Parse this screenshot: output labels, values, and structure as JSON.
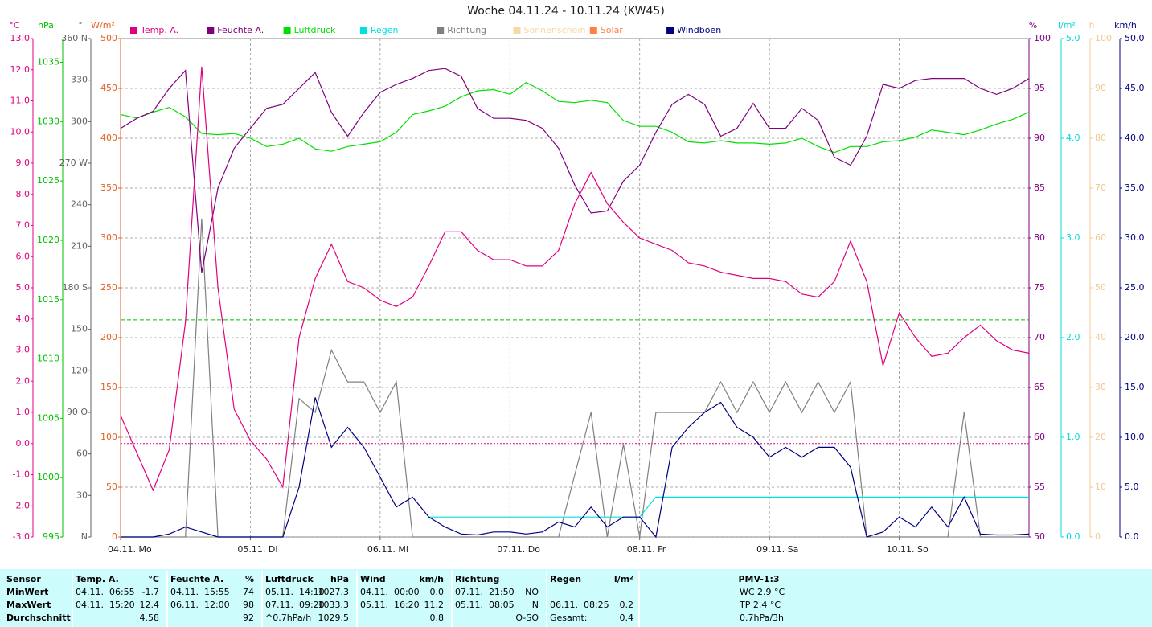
{
  "chart_data": {
    "type": "line",
    "title": "Woche 04.11.24 - 10.11.24 (KW45)",
    "x": [
      0,
      3,
      6,
      9,
      12,
      15,
      18,
      21,
      24,
      27,
      30,
      33,
      36,
      39,
      42,
      45,
      48,
      51,
      54,
      57,
      60,
      63,
      66,
      69,
      72,
      75,
      78,
      81,
      84,
      87,
      90,
      93,
      96,
      99,
      102,
      105,
      108,
      111,
      114,
      117,
      120,
      123,
      126,
      129,
      132,
      135,
      138,
      141,
      144,
      147,
      150,
      153,
      156,
      159,
      162,
      165,
      168
    ],
    "xlim": [
      0,
      168
    ],
    "xticks": [
      {
        "value": 0,
        "label": "04.11. Mo"
      },
      {
        "value": 24,
        "label": "05.11. Di"
      },
      {
        "value": 48,
        "label": "06.11. Mi"
      },
      {
        "value": 72,
        "label": "07.11. Do"
      },
      {
        "value": 96,
        "label": "08.11. Fr"
      },
      {
        "value": 120,
        "label": "09.11. Sa"
      },
      {
        "value": 144,
        "label": "10.11. So"
      }
    ],
    "grid": true,
    "axes": [
      {
        "label": "°C",
        "side": "left",
        "color": "#e0007f",
        "lim": [
          -3,
          13
        ],
        "ticks": [
          {
            "value": -3,
            "label": "-3.0"
          },
          {
            "value": -2,
            "label": "-2.0"
          },
          {
            "value": -1,
            "label": "-1.0"
          },
          {
            "value": 0,
            "label": "0.0"
          },
          {
            "value": 1,
            "label": "1.0"
          },
          {
            "value": 2,
            "label": "2.0"
          },
          {
            "value": 3,
            "label": "3.0"
          },
          {
            "value": 4,
            "label": "4.0"
          },
          {
            "value": 5,
            "label": "5.0"
          },
          {
            "value": 6,
            "label": "6.0"
          },
          {
            "value": 7,
            "label": "7.0"
          },
          {
            "value": 8,
            "label": "8.0"
          },
          {
            "value": 9,
            "label": "9.0"
          },
          {
            "value": 10,
            "label": "10.0"
          },
          {
            "value": 11,
            "label": "11.0"
          },
          {
            "value": 12,
            "label": "12.0"
          },
          {
            "value": 13,
            "label": "13.0"
          }
        ]
      },
      {
        "label": "hPa",
        "side": "left",
        "color": "#00c000",
        "lim": [
          995,
          1037
        ],
        "ticks": [
          995,
          1000,
          1005,
          1010,
          1015,
          1020,
          1025,
          1030,
          1035
        ]
      },
      {
        "label": "°",
        "side": "left",
        "color": "#606060",
        "lim": [
          0,
          360
        ],
        "ticks": [
          {
            "value": 0,
            "label": "N"
          },
          30,
          60,
          {
            "value": 90,
            "label": "90 O"
          },
          120,
          150,
          {
            "value": 180,
            "label": "180 S"
          },
          210,
          240,
          {
            "value": 270,
            "label": "270 W"
          },
          300,
          330,
          {
            "value": 360,
            "label": "360 N"
          }
        ]
      },
      {
        "label": "W/m²",
        "side": "left",
        "color": "#e06020",
        "lim": [
          0,
          500
        ],
        "ticks": [
          0,
          50,
          100,
          150,
          200,
          250,
          300,
          350,
          400,
          450,
          500
        ]
      },
      {
        "label": "%",
        "side": "right",
        "color": "#800080",
        "lim": [
          50,
          100
        ],
        "ticks": [
          50,
          55,
          60,
          65,
          70,
          75,
          80,
          85,
          90,
          95,
          100
        ]
      },
      {
        "label": "l/m²",
        "side": "right",
        "color": "#00d8d8",
        "lim": [
          0,
          5
        ],
        "ticks": [
          {
            "value": 0,
            "label": "0.0"
          },
          {
            "value": 1,
            "label": "1.0"
          },
          {
            "value": 2,
            "label": "2.0"
          },
          {
            "value": 3,
            "label": "3.0"
          },
          {
            "value": 4,
            "label": "4.0"
          },
          {
            "value": 5,
            "label": "5.0"
          }
        ]
      },
      {
        "label": "h",
        "side": "right",
        "color": "#f0c890",
        "lim": [
          0,
          100
        ],
        "ticks": [
          0,
          10,
          20,
          30,
          40,
          50,
          60,
          70,
          80,
          90,
          100
        ]
      },
      {
        "label": "km/h",
        "side": "right",
        "color": "#000080",
        "lim": [
          0,
          50
        ],
        "ticks": [
          {
            "value": 0,
            "label": "0.0"
          },
          {
            "value": 5,
            "label": "5.0"
          },
          {
            "value": 10,
            "label": "10.0"
          },
          {
            "value": 15,
            "label": "15.0"
          },
          {
            "value": 20,
            "label": "20.0"
          },
          {
            "value": 25,
            "label": "25.0"
          },
          {
            "value": 30,
            "label": "30.0"
          },
          {
            "value": 35,
            "label": "35.0"
          },
          {
            "value": 40,
            "label": "40.0"
          },
          {
            "value": 45,
            "label": "45.0"
          },
          {
            "value": 50,
            "label": "50.0"
          }
        ]
      }
    ],
    "reference_lines": [
      {
        "axis": 0,
        "value": 0,
        "color": "#e0007f"
      },
      {
        "axis": 1,
        "value": 1013.3,
        "color": "#00c000"
      }
    ],
    "series": [
      {
        "name": "Temp. A.",
        "color": "#e0007f",
        "axis": 0,
        "values": [
          0.9,
          -0.3,
          -1.5,
          -0.2,
          3.9,
          12.1,
          5.0,
          1.1,
          0.1,
          -0.5,
          -1.4,
          3.4,
          5.3,
          6.4,
          5.2,
          5.0,
          4.6,
          4.4,
          4.7,
          5.7,
          6.8,
          6.8,
          6.2,
          5.9,
          5.9,
          5.7,
          5.7,
          6.2,
          7.7,
          8.7,
          7.7,
          7.1,
          6.6,
          6.4,
          6.2,
          5.8,
          5.7,
          5.5,
          5.4,
          5.3,
          5.3,
          5.2,
          4.8,
          4.7,
          5.2,
          6.5,
          5.2,
          2.5,
          4.2,
          3.4,
          2.8,
          2.9,
          3.4,
          3.8,
          3.3,
          3.0,
          2.9
        ]
      },
      {
        "name": "Feuchte A.",
        "color": "#800080",
        "axis": 4,
        "values": [
          91,
          92,
          92.7,
          95,
          96.8,
          76.5,
          85,
          89,
          91,
          93,
          93.4,
          95,
          96.6,
          92.6,
          90.2,
          92.6,
          94.6,
          95.4,
          96,
          96.8,
          97,
          96.2,
          93,
          92,
          92,
          91.8,
          91,
          89,
          85.3,
          82.5,
          82.7,
          85.7,
          87.3,
          90.6,
          93.4,
          94.4,
          93.4,
          90.2,
          91,
          93.5,
          91,
          91,
          93,
          91.8,
          88.1,
          87.3,
          90.2,
          95.4,
          95,
          95.8,
          96,
          96,
          96,
          95,
          94.4,
          95,
          96
        ]
      },
      {
        "name": "Luftdruck",
        "color": "#00e000",
        "axis": 1,
        "values": [
          1030.6,
          1030.3,
          1030.8,
          1031.2,
          1030.4,
          1029,
          1028.9,
          1029,
          1028.6,
          1027.9,
          1028.1,
          1028.6,
          1027.7,
          1027.5,
          1027.9,
          1028.1,
          1028.3,
          1029.1,
          1030.6,
          1030.9,
          1031.3,
          1032.1,
          1032.6,
          1032.7,
          1032.3,
          1033.3,
          1032.6,
          1031.7,
          1031.6,
          1031.8,
          1031.6,
          1030.1,
          1029.6,
          1029.6,
          1029.1,
          1028.3,
          1028.2,
          1028.4,
          1028.2,
          1028.2,
          1028.1,
          1028.2,
          1028.6,
          1027.9,
          1027.4,
          1027.9,
          1027.9,
          1028.3,
          1028.4,
          1028.7,
          1029.3,
          1029.1,
          1028.9,
          1029.3,
          1029.8,
          1030.2,
          1030.8
        ]
      },
      {
        "name": "Regen",
        "color": "#00e0e0",
        "axis": 5,
        "values": [
          null,
          null,
          null,
          null,
          null,
          null,
          null,
          null,
          null,
          null,
          null,
          null,
          null,
          null,
          null,
          null,
          null,
          null,
          null,
          0.2,
          0.2,
          0.2,
          0.2,
          0.2,
          0.2,
          0.2,
          0.2,
          0.2,
          0.2,
          0.2,
          0.2,
          0.2,
          0.2,
          0.4,
          0.4,
          0.4,
          0.4,
          0.4,
          0.4,
          0.4,
          0.4,
          0.4,
          0.4,
          0.4,
          0.4,
          0.4,
          0.4,
          0.4,
          0.4,
          0.4,
          0.4,
          0.4,
          0.4,
          0.4,
          0.4,
          0.4,
          0.4
        ]
      },
      {
        "name": "Richtung",
        "color": "#808080",
        "axis": 2,
        "values": [
          0,
          0,
          0,
          0,
          0,
          230,
          0,
          0,
          0,
          0,
          0,
          100,
          90,
          135,
          112,
          112,
          90,
          112,
          0,
          0,
          0,
          0,
          0,
          0,
          0,
          0,
          0,
          0,
          45,
          90,
          0,
          67,
          0,
          90,
          90,
          90,
          90,
          112,
          90,
          112,
          90,
          112,
          90,
          112,
          90,
          112,
          0,
          0,
          0,
          0,
          0,
          0,
          90,
          0,
          0,
          0,
          0
        ]
      },
      {
        "name": "Sonnenschein",
        "color": "#f8d8a8",
        "axis": 6,
        "values": [
          null,
          null,
          null,
          null,
          null,
          null,
          null,
          null,
          null,
          null,
          null,
          null,
          null,
          null,
          null,
          null,
          null,
          null,
          null,
          null,
          null,
          null,
          null,
          null,
          null,
          null,
          null,
          null,
          null,
          null,
          null,
          null,
          null,
          null,
          null,
          null,
          null,
          null,
          null,
          null,
          null,
          null,
          null,
          null,
          null,
          null,
          null,
          null,
          null,
          null,
          null,
          null,
          null,
          null,
          null,
          null,
          null
        ]
      },
      {
        "name": "Solar",
        "color": "#ff8040",
        "axis": 3,
        "values": [
          null,
          null,
          null,
          null,
          null,
          null,
          null,
          null,
          null,
          null,
          null,
          null,
          null,
          null,
          null,
          null,
          null,
          null,
          null,
          null,
          null,
          null,
          null,
          null,
          null,
          null,
          null,
          null,
          null,
          null,
          null,
          null,
          null,
          null,
          null,
          null,
          null,
          null,
          null,
          null,
          null,
          null,
          null,
          null,
          null,
          null,
          null,
          null,
          null,
          null,
          null,
          null,
          null,
          null,
          null,
          null,
          null
        ]
      },
      {
        "name": "Windböen",
        "color": "#000080",
        "axis": 7,
        "values": [
          0,
          0,
          0,
          0.3,
          1,
          0.5,
          0,
          0,
          0,
          0,
          0,
          5,
          14,
          9,
          11,
          9,
          6,
          3,
          4,
          2,
          1,
          0.3,
          0.2,
          0.5,
          0.5,
          0.3,
          0.5,
          1.5,
          1,
          3,
          1,
          2,
          2,
          0,
          9,
          11,
          12.5,
          13.5,
          11,
          10,
          8,
          9,
          8,
          9,
          9,
          7,
          0,
          0.5,
          2,
          1,
          3,
          1,
          4,
          0.3,
          0.2,
          0.2,
          0.3
        ]
      }
    ]
  },
  "table": {
    "sensor": "Sensor",
    "row_labels": [
      "MinWert",
      "MaxWert",
      "Durchschnitt"
    ],
    "groups": [
      {
        "name": "Temp. A.",
        "unit": "°C",
        "rows": [
          [
            "04.11.  06:55",
            "-1.7"
          ],
          [
            "04.11.  15:20",
            "12.4"
          ],
          [
            null,
            "4.58"
          ]
        ]
      },
      {
        "name": "Feuchte A.",
        "unit": "%",
        "rows": [
          [
            "04.11.  15:55",
            "74"
          ],
          [
            "06.11.  12:00",
            "98"
          ],
          [
            null,
            "92"
          ]
        ]
      },
      {
        "name": "Luftdruck",
        "unit": "hPa",
        "rows": [
          [
            "05.11.  14:10",
            "1027.3"
          ],
          [
            "07.11.  09:20",
            "1033.3"
          ],
          [
            "^0.7hPa/h",
            "1029.5"
          ]
        ]
      },
      {
        "name": "Wind",
        "unit": "km/h",
        "rows": [
          [
            "04.11.  00:00",
            "0.0"
          ],
          [
            "05.11.  16:20",
            "11.2"
          ],
          [
            null,
            "0.8"
          ]
        ]
      },
      {
        "name": "Richtung",
        "rows": [
          [
            "07.11.  21:50",
            "NO"
          ],
          [
            "05.11.  08:05",
            "N"
          ],
          [
            null,
            "O-SO"
          ]
        ]
      },
      {
        "name": "Regen",
        "unit": "l/m²",
        "rows": [
          [
            null,
            null
          ],
          [
            "06.11.  08:25",
            "0.2"
          ],
          [
            "Gesamt:",
            "0.4"
          ]
        ]
      }
    ],
    "pmv": {
      "title": "PMV-1:3",
      "lines": [
        "WC 2.9 °C",
        "TP 2.4 °C",
        "0.7hPa/3h"
      ]
    }
  }
}
